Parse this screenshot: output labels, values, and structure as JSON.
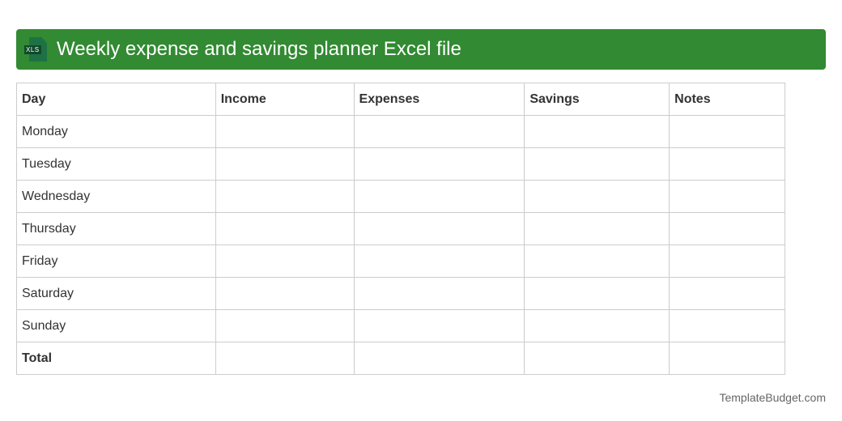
{
  "header": {
    "title": "Weekly expense and savings planner Excel file",
    "icon": "xls-file-icon",
    "icon_label": "XLS",
    "color": "#328a32"
  },
  "table": {
    "columns": [
      "Day",
      "Income",
      "Expenses",
      "Savings",
      "Notes"
    ],
    "rows": [
      "Monday",
      "Tuesday",
      "Wednesday",
      "Thursday",
      "Friday",
      "Saturday",
      "Sunday",
      "Total"
    ]
  },
  "footer": {
    "brand": "TemplateBudget.com"
  }
}
